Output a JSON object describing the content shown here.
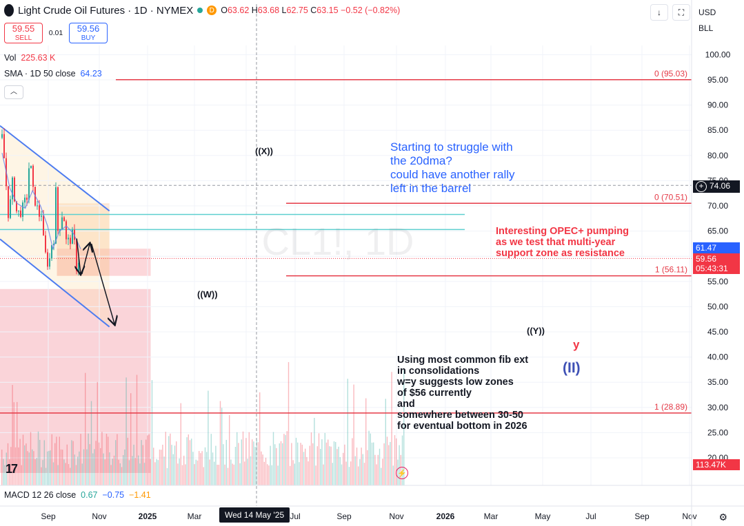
{
  "header": {
    "title": "Light Crude Oil Futures · 1D · NYMEX",
    "badge": "D",
    "open_label": "O",
    "open": "63.62",
    "high_label": "H",
    "high": "63.68",
    "low_label": "L",
    "low": "62.75",
    "close_label": "C",
    "close": "63.15",
    "change": "−0.52 (−0.82%)"
  },
  "trade": {
    "sell_price": "59.55",
    "sell_label": "SELL",
    "spread": "0.01",
    "buy_price": "59.56",
    "buy_label": "BUY"
  },
  "indicators": {
    "vol_label": "Vol",
    "vol_value": "225.63 K",
    "sma_label": "SMA · 1D 50 close",
    "sma_value": "64.23",
    "macd_label": "MACD 12 26 close",
    "macd_v1": "0.67",
    "macd_v2": "−0.75",
    "macd_v3": "−1.41"
  },
  "toolbar": {
    "currency": "USD",
    "unit": "BLL"
  },
  "price_tags": {
    "last": "74.06",
    "sma": "61.47",
    "price": "59.56",
    "countdown": "05:43:31",
    "volume": "113.47K"
  },
  "crosshair_date": "Wed 14 May '25",
  "annotations": {
    "blue": "Starting to struggle with\nthe 20dma?\ncould have another rally\nleft in the barrel",
    "red": "Interesting OPEC+ pumping\nas we test that multi-year\nsupport zone as resistance",
    "black": "Using most common fib ext\nin consolidations\nw=y suggests low zones\nof $56 currently\nand\nsomewhere between 30-50\nfor eventual bottom in 2026",
    "wave_x": "((X))",
    "wave_w": "((W))",
    "wave_y": "((Y))",
    "y_small": "y",
    "wave_ii": "(II)"
  },
  "fib_levels": [
    {
      "label": "0 (95.03)",
      "price": 95.03
    },
    {
      "label": "0 (70.51)",
      "price": 70.51
    },
    {
      "label": "1 (56.11)",
      "price": 56.11
    },
    {
      "label": "1 (28.89)",
      "price": 28.89
    }
  ],
  "colors": {
    "up": "#26a69a",
    "down": "#f23645",
    "channel": "#4d7cf0",
    "fib": "#e53946",
    "hline": "#5ccfcf",
    "sma": "#6b84e8"
  },
  "chart_data": {
    "type": "candlestick",
    "title": "Light Crude Oil Futures · 1D · NYMEX",
    "y_axis_ticks": [
      100,
      95,
      90,
      85,
      80,
      75,
      70,
      65,
      60,
      55,
      50,
      45,
      40,
      35,
      30,
      25,
      20
    ],
    "x_axis_labels": [
      "Sep",
      "Nov",
      "2025",
      "Mar",
      "May",
      "Jul",
      "Sep",
      "Nov",
      "2026",
      "Mar",
      "May",
      "Jul",
      "Sep",
      "Nov"
    ],
    "ylim": [
      17,
      104
    ],
    "grid": true,
    "price_path": [
      [
        "2024-08-05",
        83.5
      ],
      [
        "2024-08-20",
        78.5
      ],
      [
        "2024-09-10",
        68.5
      ],
      [
        "2024-09-25",
        71.0
      ],
      [
        "2024-10-08",
        75.5
      ],
      [
        "2024-10-25",
        69.0
      ],
      [
        "2024-11-15",
        68.5
      ],
      [
        "2024-12-05",
        69.5
      ],
      [
        "2025-01-01",
        72.0
      ],
      [
        "2025-01-15",
        80.0
      ],
      [
        "2025-02-05",
        72.5
      ],
      [
        "2025-02-28",
        69.5
      ],
      [
        "2025-03-20",
        67.5
      ],
      [
        "2025-04-03",
        70.5
      ],
      [
        "2025-04-09",
        57.5
      ],
      [
        "2025-04-25",
        62.0
      ],
      [
        "2025-05-05",
        56.5
      ],
      [
        "2025-05-20",
        62.0
      ],
      [
        "2025-06-10",
        64.0
      ],
      [
        "2025-06-23",
        77.0
      ],
      [
        "2025-06-25",
        64.5
      ],
      [
        "2025-07-15",
        66.5
      ],
      [
        "2025-08-01",
        69.5
      ],
      [
        "2025-08-20",
        62.5
      ],
      [
        "2025-09-15",
        63.5
      ],
      [
        "2025-10-01",
        64.5
      ],
      [
        "2025-10-20",
        57.5
      ],
      [
        "2025-11-05",
        60.0
      ],
      [
        "2025-11-12",
        59.56
      ]
    ],
    "sma_path": [
      [
        "2024-08-05",
        80.5
      ],
      [
        "2024-09-20",
        73.5
      ],
      [
        "2024-11-01",
        70.5
      ],
      [
        "2024-12-20",
        69.5
      ],
      [
        "2025-02-01",
        73.0
      ],
      [
        "2025-03-20",
        70.0
      ],
      [
        "2025-05-01",
        66.0
      ],
      [
        "2025-06-01",
        61.5
      ],
      [
        "2025-07-10",
        65.0
      ],
      [
        "2025-08-20",
        66.0
      ],
      [
        "2025-10-01",
        64.5
      ],
      [
        "2025-11-12",
        61.47
      ]
    ],
    "horizontal_lines": [
      68.3,
      65.3,
      74.06
    ],
    "channel": {
      "upper": [
        [
          "2024-07-20",
          86.0
        ],
        [
          "2026-05-01",
          69.0
        ]
      ],
      "lower": [
        [
          "2024-07-20",
          63.5
        ],
        [
          "2026-05-01",
          46.0
        ]
      ]
    },
    "zones": [
      {
        "from": 53.5,
        "to": 17.0,
        "start": "2024-07-20",
        "end": "2026-12-31",
        "color": "pink"
      },
      {
        "from": 70.51,
        "to": 56.11,
        "start": "2025-06-25",
        "end": "2026-05-01",
        "color": "orange"
      },
      {
        "from": 61.5,
        "to": 56.11,
        "start": "2025-06-25",
        "end": "2026-12-31",
        "color": "red"
      }
    ],
    "projection_arrows": [
      [
        [
          "2025-10-20",
          63.5
        ],
        [
          "2025-11-12",
          56.5
        ]
      ],
      [
        [
          "2025-11-20",
          56.5
        ],
        [
          "2026-01-05",
          62.5
        ]
      ],
      [
        [
          "2026-01-15",
          62.5
        ],
        [
          "2026-06-01",
          46.5
        ]
      ]
    ]
  }
}
